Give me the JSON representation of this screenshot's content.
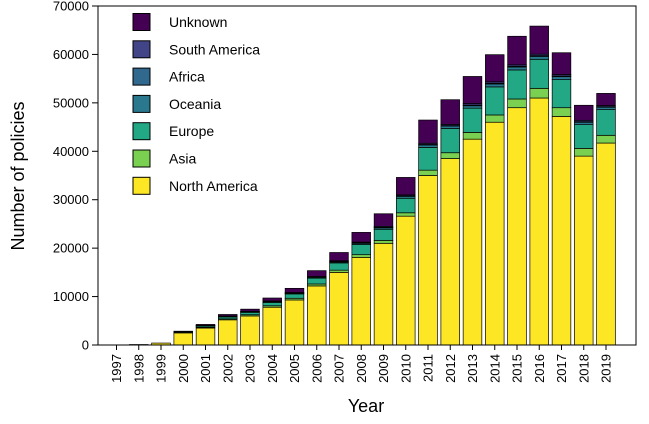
{
  "chart_data": {
    "type": "bar",
    "stacked": true,
    "xlabel": "Year",
    "ylabel": "Number of policies",
    "ylim": [
      0,
      70000
    ],
    "yticks": [
      0,
      10000,
      20000,
      30000,
      40000,
      50000,
      60000,
      70000
    ],
    "grid": false,
    "legend_position": "top-left",
    "categories": [
      "1997",
      "1998",
      "1999",
      "2000",
      "2001",
      "2002",
      "2003",
      "2004",
      "2005",
      "2006",
      "2007",
      "2008",
      "2009",
      "2010",
      "2011",
      "2012",
      "2013",
      "2014",
      "2015",
      "2016",
      "2017",
      "2018",
      "2019"
    ],
    "series": [
      {
        "name": "North America",
        "color": "#fde725",
        "values": [
          0,
          100,
          400,
          2500,
          3500,
          5200,
          6000,
          7800,
          9300,
          12200,
          15000,
          18100,
          21000,
          26600,
          35000,
          38500,
          42500,
          46000,
          49000,
          51000,
          47200,
          39000,
          41700
        ]
      },
      {
        "name": "Asia",
        "color": "#7ad151",
        "values": [
          0,
          0,
          0,
          100,
          150,
          200,
          250,
          300,
          350,
          400,
          450,
          550,
          600,
          700,
          1100,
          1200,
          1400,
          1500,
          1800,
          2000,
          1800,
          1600,
          1600
        ]
      },
      {
        "name": "Europe",
        "color": "#22a884",
        "values": [
          0,
          0,
          0,
          200,
          300,
          400,
          500,
          700,
          900,
          1200,
          1500,
          2100,
          2300,
          3000,
          4700,
          5000,
          5000,
          5800,
          6000,
          6000,
          5800,
          4900,
          5300
        ]
      },
      {
        "name": "Oceania",
        "color": "#2a788e",
        "values": [
          0,
          0,
          0,
          0,
          50,
          100,
          100,
          150,
          150,
          200,
          200,
          250,
          300,
          400,
          500,
          500,
          500,
          600,
          600,
          600,
          600,
          500,
          500
        ]
      },
      {
        "name": "Africa",
        "color": "#31688e",
        "values": [
          0,
          0,
          0,
          0,
          0,
          50,
          50,
          50,
          50,
          50,
          100,
          100,
          100,
          100,
          100,
          100,
          150,
          150,
          150,
          150,
          150,
          100,
          100
        ]
      },
      {
        "name": "South America",
        "color": "#414487",
        "values": [
          0,
          0,
          0,
          0,
          50,
          50,
          50,
          100,
          100,
          100,
          150,
          150,
          200,
          200,
          250,
          250,
          300,
          300,
          300,
          300,
          300,
          300,
          250
        ]
      },
      {
        "name": "Unknown",
        "color": "#440154",
        "values": [
          0,
          0,
          0,
          50,
          200,
          300,
          450,
          600,
          850,
          1200,
          1700,
          2000,
          2600,
          3600,
          4800,
          5100,
          5600,
          5600,
          5900,
          5800,
          4500,
          3100,
          2500
        ]
      }
    ]
  }
}
